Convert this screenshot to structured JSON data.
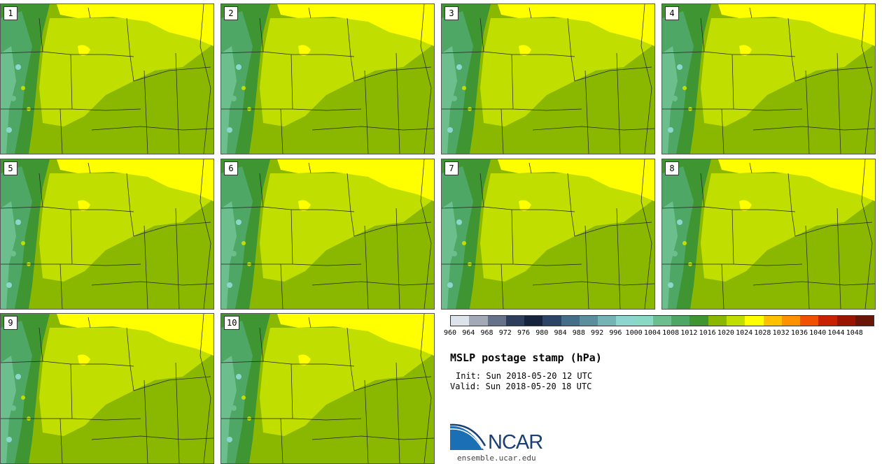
{
  "panels": [
    {
      "label": "1"
    },
    {
      "label": "2"
    },
    {
      "label": "3"
    },
    {
      "label": "4"
    },
    {
      "label": "5"
    },
    {
      "label": "6"
    },
    {
      "label": "7"
    },
    {
      "label": "8"
    },
    {
      "label": "9"
    },
    {
      "label": "10"
    }
  ],
  "colorbar": {
    "levels": [
      "960",
      "964",
      "968",
      "972",
      "976",
      "980",
      "984",
      "988",
      "992",
      "996",
      "1000",
      "1004",
      "1008",
      "1012",
      "1016",
      "1020",
      "1024",
      "1028",
      "1032",
      "1036",
      "1040",
      "1044",
      "1048"
    ],
    "colors": [
      "#dde3ea",
      "#a4a9b8",
      "#66718a",
      "#2c3e5c",
      "#15233d",
      "#2c4566",
      "#456f88",
      "#5c8f9d",
      "#74b3b6",
      "#8dd6cd",
      "#8ad9c5",
      "#6cbf8d",
      "#4ea764",
      "#3f9532",
      "#8ab800",
      "#c0df00",
      "#ffff00",
      "#ffc000",
      "#ff9000",
      "#f05000",
      "#c82000",
      "#9a1500",
      "#6a1505"
    ]
  },
  "map_colors": {
    "c1000_1004": "#8dd6cd",
    "c1004_1008": "#6cbf8d",
    "c1008_1012": "#4ea764",
    "c1012_1016": "#3f9532",
    "c1016_1020": "#8ab800",
    "c1020_1024": "#c0df00",
    "c1024_1028": "#ffff00"
  },
  "title": "MSLP postage stamp (hPa)",
  "init": "Init: Sun 2018-05-20 12 UTC",
  "valid": "Valid: Sun 2018-05-20 18 UTC",
  "logo": {
    "name": "NCAR",
    "url": "ensemble.ucar.edu"
  }
}
